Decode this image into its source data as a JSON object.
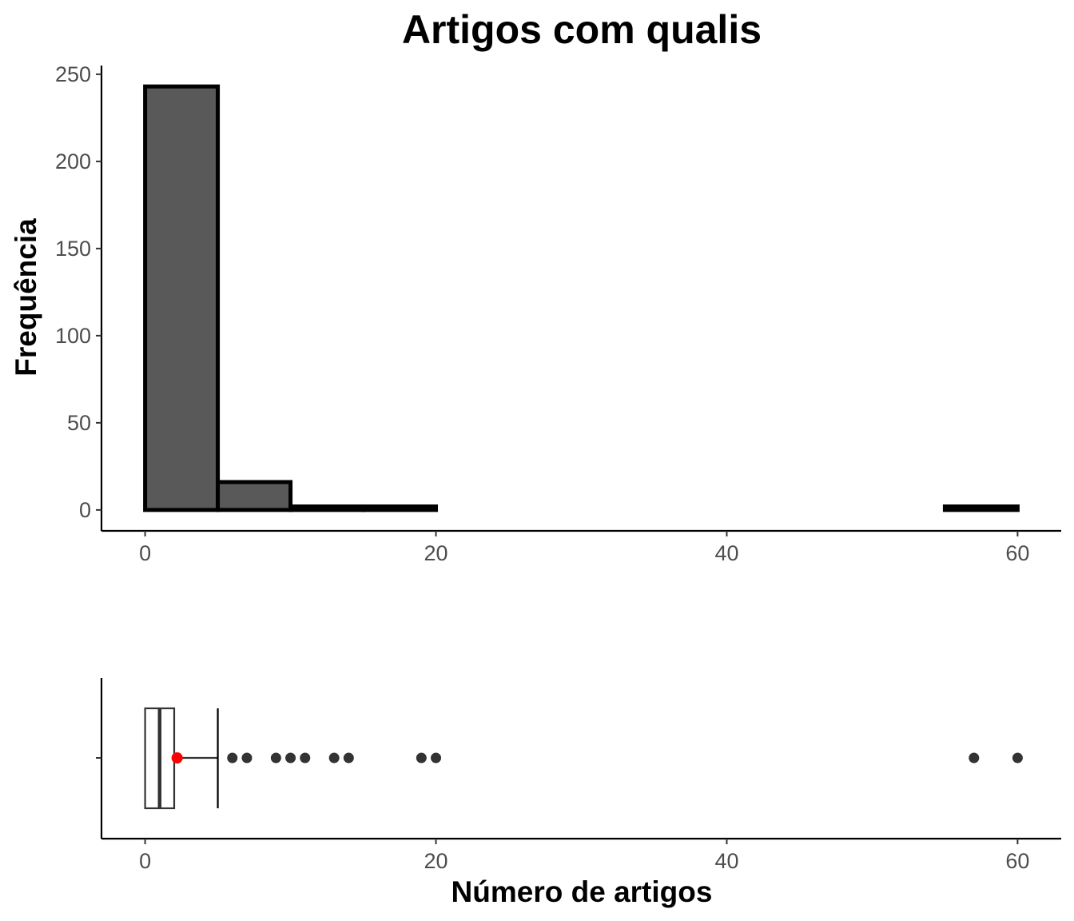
{
  "chart_data": [
    {
      "type": "histogram",
      "title": "Artigos com qualis",
      "xlabel": "",
      "ylabel": "Frequência",
      "xlim": [
        -3,
        63
      ],
      "ylim": [
        -12,
        255
      ],
      "x_ticks": [
        0,
        20,
        40,
        60
      ],
      "y_ticks": [
        0,
        50,
        100,
        150,
        200,
        250
      ],
      "bin_width": 5,
      "bins": [
        {
          "start": 0,
          "end": 5,
          "count": 243
        },
        {
          "start": 5,
          "end": 10,
          "count": 16
        },
        {
          "start": 10,
          "end": 15,
          "count": 2
        },
        {
          "start": 15,
          "end": 20,
          "count": 2
        },
        {
          "start": 20,
          "end": 25,
          "count": 0
        },
        {
          "start": 25,
          "end": 30,
          "count": 0
        },
        {
          "start": 30,
          "end": 35,
          "count": 0
        },
        {
          "start": 35,
          "end": 40,
          "count": 0
        },
        {
          "start": 40,
          "end": 45,
          "count": 0
        },
        {
          "start": 45,
          "end": 50,
          "count": 0
        },
        {
          "start": 50,
          "end": 55,
          "count": 0
        },
        {
          "start": 55,
          "end": 60,
          "count": 2
        }
      ],
      "bar_fill": "#595959",
      "bar_stroke": "#000000",
      "grid": false
    },
    {
      "type": "boxplot",
      "xlabel": "Número de artigos",
      "xlim": [
        -3,
        63
      ],
      "x_ticks": [
        0,
        20,
        40,
        60
      ],
      "min": 0,
      "q1": 0,
      "median": 1,
      "q3": 2,
      "whisker_high": 5,
      "mean": 2.2,
      "outliers": [
        6,
        7,
        9,
        10,
        11,
        13,
        14,
        19,
        20,
        57,
        60
      ],
      "mean_color": "#ff0000",
      "outlier_color": "#333333",
      "grid": false
    }
  ]
}
